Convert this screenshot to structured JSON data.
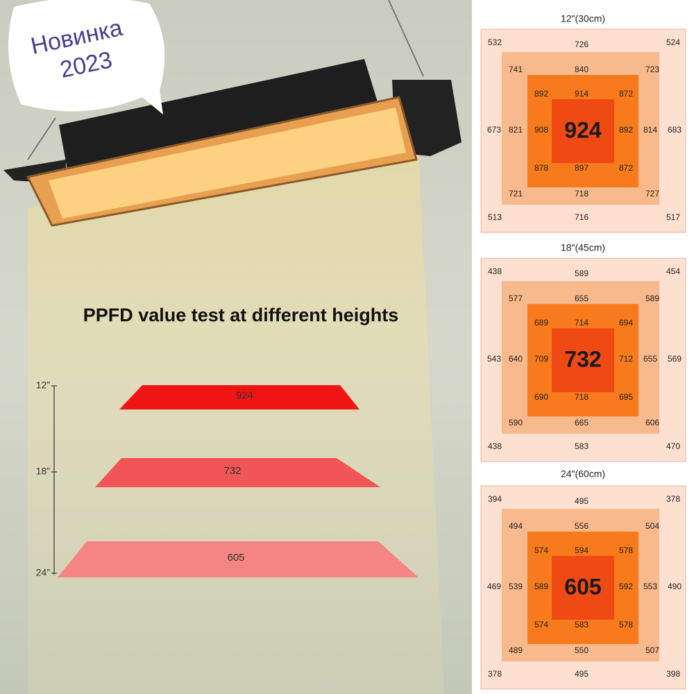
{
  "badge": {
    "lines": [
      "Новинка",
      "2023"
    ]
  },
  "title": "PPFD value test at different heights",
  "heights": [
    {
      "label": "12”",
      "value": 924
    },
    {
      "label": "18”",
      "value": 732
    },
    {
      "label": "24”",
      "value": 605
    }
  ],
  "grids": [
    {
      "heading": "12\"(30cm)",
      "outer": [
        532,
        726,
        524,
        673,
        683,
        513,
        716,
        517
      ],
      "middle": [
        741,
        840,
        723,
        821,
        814,
        721,
        718,
        727
      ],
      "inner": [
        892,
        914,
        872,
        908,
        892,
        878,
        897,
        872
      ],
      "center": 924
    },
    {
      "heading": "18\"(45cm)",
      "outer": [
        438,
        589,
        454,
        543,
        569,
        438,
        583,
        470
      ],
      "middle": [
        577,
        655,
        589,
        640,
        655,
        590,
        665,
        606
      ],
      "inner": [
        689,
        714,
        694,
        709,
        712,
        690,
        718,
        695
      ],
      "center": 732
    },
    {
      "heading": "24\"(60cm)",
      "outer": [
        394,
        495,
        378,
        469,
        490,
        378,
        495,
        398
      ],
      "middle": [
        494,
        556,
        504,
        539,
        553,
        489,
        550,
        507
      ],
      "inner": [
        574,
        594,
        578,
        589,
        592,
        574,
        583,
        578
      ],
      "center": 605
    }
  ]
}
